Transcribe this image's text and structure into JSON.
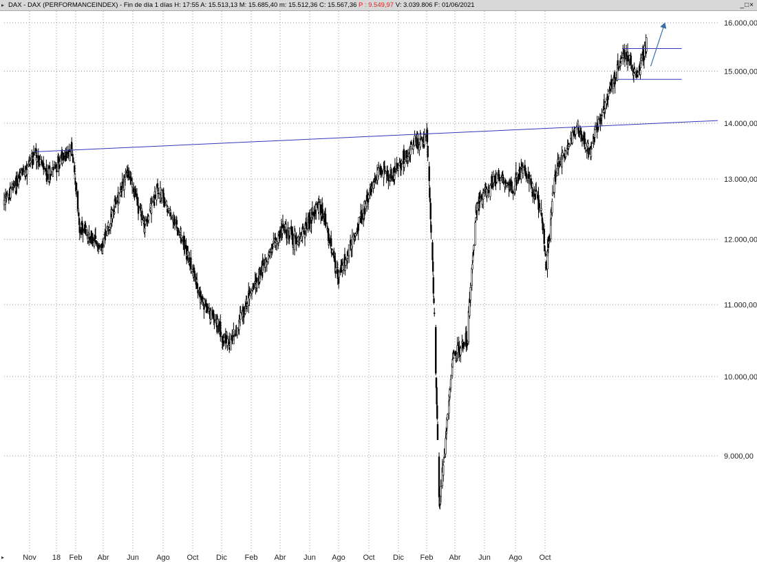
{
  "window": {
    "title_main": "DAX - DAX (PERFORMANCEINDEX) - Fin de día 1 días  H: 17:55  A: 15.513,13  M: 15.685,40  m: 15.512,36  C: 15.567,36 ",
    "title_p": "P : 9.549,97",
    "title_tail": "  V: 3.039.806  F: 01/06/2021",
    "buttons": "_□×"
  },
  "colors": {
    "trend_line": "#3333bb",
    "range_lines": "#3333bb",
    "arrow": "#3a6fa8",
    "candles": "#000000",
    "grid": "#9a9a9a"
  },
  "chart_data": {
    "type": "candlestick",
    "title": "DAX - DAX (PERFORMANCEINDEX)",
    "interval": "Fin de día 1 días",
    "y_scale": "log",
    "ylim": [
      7900,
      16400
    ],
    "y_ticks": [
      {
        "value": 16000,
        "label": "16.000,00"
      },
      {
        "value": 15000,
        "label": "15.000,00"
      },
      {
        "value": 14000,
        "label": "14.000,00"
      },
      {
        "value": 13000,
        "label": "13.000,00"
      },
      {
        "value": 12000,
        "label": "12.000,00"
      },
      {
        "value": 11000,
        "label": "11.000,00"
      },
      {
        "value": 10000,
        "label": "10.000,00"
      },
      {
        "value": 9000,
        "label": "9.000,00"
      }
    ],
    "x_ticks": [
      "Nov",
      "18",
      "Feb",
      "Abr",
      "Jun",
      "Ago",
      "Oct",
      "Dic",
      "Feb",
      "Abr",
      "Jun",
      "Ago",
      "Oct",
      "Dic",
      "Feb",
      "Abr",
      "Jun",
      "Ago",
      "Oct"
    ],
    "x_range": [
      "2017-09",
      "2021-10"
    ],
    "last_bar": {
      "date": "01/06/2021",
      "open": 15513.13,
      "high": 15685.4,
      "low": 15512.36,
      "close": 15567.36,
      "volume": 3039806
    },
    "price_path": [
      [
        "2017-09-01",
        12600
      ],
      [
        "2017-10-01",
        13000
      ],
      [
        "2017-11-07",
        13480
      ],
      [
        "2017-12-01",
        13050
      ],
      [
        "2018-01-23",
        13550
      ],
      [
        "2018-02-09",
        12200
      ],
      [
        "2018-03-26",
        11850
      ],
      [
        "2018-05-22",
        13150
      ],
      [
        "2018-06-28",
        12200
      ],
      [
        "2018-07-25",
        12850
      ],
      [
        "2018-09-15",
        12000
      ],
      [
        "2018-10-26",
        11100
      ],
      [
        "2018-12-27",
        10400
      ],
      [
        "2019-02-15",
        11300
      ],
      [
        "2019-04-20",
        12200
      ],
      [
        "2019-05-20",
        11950
      ],
      [
        "2019-07-05",
        12600
      ],
      [
        "2019-08-15",
        11400
      ],
      [
        "2019-10-01",
        12300
      ],
      [
        "2019-11-10",
        13200
      ],
      [
        "2019-12-05",
        13050
      ],
      [
        "2020-01-20",
        13600
      ],
      [
        "2020-02-19",
        13780
      ],
      [
        "2020-03-01",
        11900
      ],
      [
        "2020-03-16",
        8500
      ],
      [
        "2020-03-18",
        8440
      ],
      [
        "2020-04-15",
        10250
      ],
      [
        "2020-05-15",
        10500
      ],
      [
        "2020-06-05",
        12600
      ],
      [
        "2020-07-20",
        13050
      ],
      [
        "2020-08-20",
        12850
      ],
      [
        "2020-09-10",
        13200
      ],
      [
        "2020-10-20",
        12500
      ],
      [
        "2020-10-30",
        11600
      ],
      [
        "2020-11-20",
        13150
      ],
      [
        "2021-01-08",
        13950
      ],
      [
        "2021-01-29",
        13450
      ],
      [
        "2021-02-20",
        14000
      ],
      [
        "2021-03-15",
        14650
      ],
      [
        "2021-04-16",
        15400
      ],
      [
        "2021-05-12",
        14900
      ],
      [
        "2021-06-01",
        15567
      ]
    ],
    "annotations": {
      "trendline": {
        "start": [
          "2017-11-07",
          13480
        ],
        "end": [
          "2021-10-31",
          14050
        ]
      },
      "range_top": {
        "start": [
          "2021-04-10",
          15460
        ],
        "end": [
          "2021-08-15",
          15460
        ]
      },
      "range_bottom": {
        "start": [
          "2021-04-01",
          14840
        ],
        "end": [
          "2021-08-15",
          14840
        ]
      },
      "arrow": {
        "start": [
          "2021-06-10",
          15100
        ],
        "end": [
          "2021-07-10",
          15990
        ]
      }
    }
  }
}
